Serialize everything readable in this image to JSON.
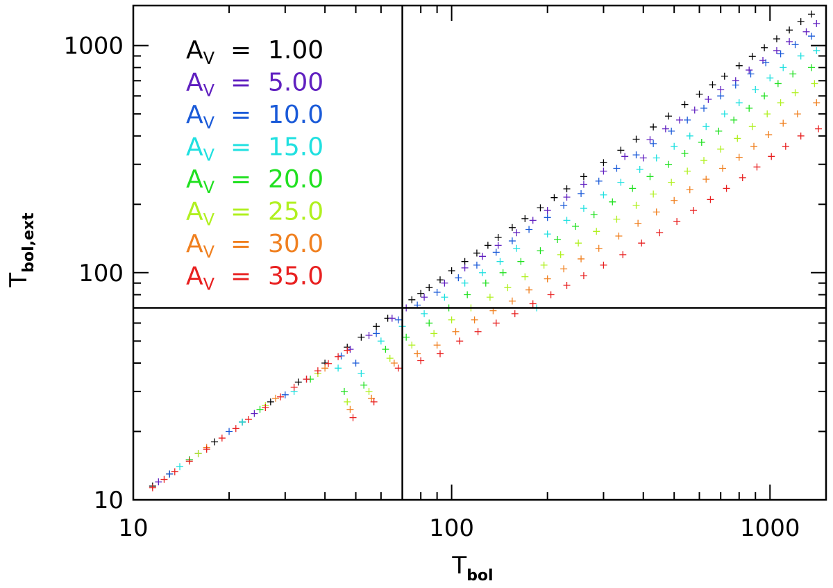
{
  "chart_data": {
    "type": "scatter",
    "marker": "plus",
    "x_scale": "log",
    "y_scale": "log",
    "xlim": [
      10,
      1500
    ],
    "ylim": [
      10,
      1500
    ],
    "x_major_ticks": [
      10,
      100,
      1000
    ],
    "y_major_ticks": [
      10,
      100,
      1000
    ],
    "x_tick_labels": [
      "10",
      "100",
      "1000"
    ],
    "y_tick_labels": [
      "10",
      "100",
      "1000"
    ],
    "xlabel": {
      "main": "T",
      "sub": "bol"
    },
    "ylabel": {
      "main": "T",
      "sub": "bol,ext"
    },
    "reference_lines": {
      "vertical_x": 70,
      "horizontal_y": 70
    },
    "legend_placement": "top-left",
    "series": [
      {
        "name": "A_V = 1.00",
        "legend_value": "1.00",
        "color": "#000000",
        "points": [
          [
            11.5,
            11.5
          ],
          [
            13,
            13
          ],
          [
            15,
            15
          ],
          [
            18,
            18
          ],
          [
            22,
            22
          ],
          [
            27,
            27
          ],
          [
            33,
            33
          ],
          [
            40,
            40
          ],
          [
            47,
            47
          ],
          [
            52,
            52
          ],
          [
            58,
            58
          ],
          [
            63,
            63
          ],
          [
            70,
            70
          ],
          [
            75,
            76
          ],
          [
            80,
            81
          ],
          [
            85,
            86
          ],
          [
            92,
            93
          ],
          [
            100,
            102
          ],
          [
            110,
            112
          ],
          [
            120,
            122
          ],
          [
            130,
            132
          ],
          [
            140,
            143
          ],
          [
            155,
            158
          ],
          [
            170,
            173
          ],
          [
            190,
            193
          ],
          [
            210,
            214
          ],
          [
            230,
            234
          ],
          [
            260,
            265
          ],
          [
            300,
            305
          ],
          [
            340,
            346
          ],
          [
            380,
            387
          ],
          [
            430,
            438
          ],
          [
            480,
            489
          ],
          [
            540,
            550
          ],
          [
            600,
            611
          ],
          [
            660,
            672
          ],
          [
            720,
            733
          ],
          [
            800,
            815
          ],
          [
            880,
            896
          ],
          [
            960,
            978
          ],
          [
            1050,
            1070
          ],
          [
            1150,
            1170
          ],
          [
            1250,
            1275
          ],
          [
            1350,
            1375
          ]
        ]
      },
      {
        "name": "A_V = 5.00",
        "legend_value": "5.00",
        "color": "#6020c0",
        "points": [
          [
            12,
            12
          ],
          [
            16,
            16
          ],
          [
            24,
            24
          ],
          [
            35,
            34
          ],
          [
            48,
            46
          ],
          [
            55,
            53
          ],
          [
            65,
            63
          ],
          [
            72,
            70
          ],
          [
            82,
            78
          ],
          [
            95,
            90
          ],
          [
            110,
            105
          ],
          [
            125,
            118
          ],
          [
            140,
            132
          ],
          [
            160,
            150
          ],
          [
            180,
            170
          ],
          [
            200,
            188
          ],
          [
            230,
            215
          ],
          [
            260,
            245
          ],
          [
            300,
            280
          ],
          [
            350,
            325
          ],
          [
            400,
            320
          ],
          [
            420,
            385
          ],
          [
            470,
            430
          ],
          [
            520,
            470
          ],
          [
            580,
            520
          ],
          [
            640,
            580
          ],
          [
            700,
            640
          ],
          [
            780,
            700
          ],
          [
            860,
            780
          ],
          [
            950,
            860
          ],
          [
            1050,
            950
          ],
          [
            1150,
            1040
          ],
          [
            1300,
            1150
          ],
          [
            1400,
            1250
          ]
        ]
      },
      {
        "name": "A_V = 10.0",
        "legend_value": "10.0",
        "color": "#1a5ad8",
        "points": [
          [
            13,
            13
          ],
          [
            20,
            20
          ],
          [
            30,
            29
          ],
          [
            45,
            43
          ],
          [
            50,
            40
          ],
          [
            58,
            54
          ],
          [
            68,
            62
          ],
          [
            78,
            72
          ],
          [
            90,
            82
          ],
          [
            105,
            95
          ],
          [
            120,
            108
          ],
          [
            138,
            123
          ],
          [
            155,
            138
          ],
          [
            175,
            155
          ],
          [
            200,
            175
          ],
          [
            225,
            198
          ],
          [
            255,
            223
          ],
          [
            290,
            253
          ],
          [
            330,
            288
          ],
          [
            380,
            330
          ],
          [
            430,
            370
          ],
          [
            490,
            420
          ],
          [
            550,
            470
          ],
          [
            620,
            530
          ],
          [
            700,
            600
          ],
          [
            780,
            670
          ],
          [
            870,
            750
          ],
          [
            970,
            840
          ],
          [
            1080,
            920
          ],
          [
            1200,
            1010
          ],
          [
            1350,
            1100
          ]
        ]
      },
      {
        "name": "A_V = 15.0",
        "legend_value": "15.0",
        "color": "#20e0e0",
        "points": [
          [
            14,
            14
          ],
          [
            22,
            22
          ],
          [
            32,
            30
          ],
          [
            44,
            38
          ],
          [
            52,
            36
          ],
          [
            60,
            50
          ],
          [
            70,
            58
          ],
          [
            82,
            66
          ],
          [
            95,
            78
          ],
          [
            110,
            90
          ],
          [
            125,
            100
          ],
          [
            142,
            112
          ],
          [
            160,
            128
          ],
          [
            185,
            70
          ],
          [
            200,
            148
          ],
          [
            230,
            170
          ],
          [
            260,
            192
          ],
          [
            300,
            220
          ],
          [
            340,
            250
          ],
          [
            390,
            285
          ],
          [
            440,
            320
          ],
          [
            500,
            360
          ],
          [
            560,
            400
          ],
          [
            630,
            440
          ],
          [
            720,
            500
          ],
          [
            800,
            560
          ],
          [
            900,
            640
          ],
          [
            1000,
            720
          ],
          [
            1100,
            800
          ],
          [
            1250,
            900
          ],
          [
            1400,
            950
          ]
        ]
      },
      {
        "name": "A_V = 20.0",
        "legend_value": "20.0",
        "color": "#20e020",
        "points": [
          [
            15,
            15
          ],
          [
            25,
            25
          ],
          [
            36,
            34
          ],
          [
            46,
            30
          ],
          [
            53,
            32
          ],
          [
            62,
            46
          ],
          [
            72,
            52
          ],
          [
            85,
            60
          ],
          [
            98,
            70
          ],
          [
            112,
            80
          ],
          [
            128,
            90
          ],
          [
            145,
            100
          ],
          [
            165,
            112
          ],
          [
            190,
            125
          ],
          [
            215,
            140
          ],
          [
            245,
            160
          ],
          [
            280,
            180
          ],
          [
            320,
            205
          ],
          [
            370,
            235
          ],
          [
            420,
            265
          ],
          [
            480,
            300
          ],
          [
            540,
            335
          ],
          [
            610,
            375
          ],
          [
            690,
            420
          ],
          [
            770,
            470
          ],
          [
            860,
            530
          ],
          [
            960,
            600
          ],
          [
            1060,
            680
          ],
          [
            1180,
            750
          ],
          [
            1350,
            800
          ]
        ]
      },
      {
        "name": "A_V = 25.0",
        "legend_value": "25.0",
        "color": "#b0f020",
        "points": [
          [
            16,
            16
          ],
          [
            26,
            26
          ],
          [
            38,
            36
          ],
          [
            47,
            27
          ],
          [
            55,
            30
          ],
          [
            64,
            42
          ],
          [
            75,
            48
          ],
          [
            88,
            54
          ],
          [
            100,
            62
          ],
          [
            115,
            70
          ],
          [
            132,
            78
          ],
          [
            150,
            86
          ],
          [
            170,
            96
          ],
          [
            195,
            108
          ],
          [
            220,
            120
          ],
          [
            250,
            135
          ],
          [
            285,
            152
          ],
          [
            330,
            172
          ],
          [
            380,
            198
          ],
          [
            430,
            222
          ],
          [
            490,
            250
          ],
          [
            550,
            280
          ],
          [
            620,
            312
          ],
          [
            700,
            350
          ],
          [
            790,
            390
          ],
          [
            880,
            440
          ],
          [
            980,
            500
          ],
          [
            1080,
            560
          ],
          [
            1200,
            620
          ],
          [
            1380,
            680
          ]
        ]
      },
      {
        "name": "A_V = 30.0",
        "legend_value": "30.0",
        "color": "#f08020",
        "points": [
          [
            17,
            17
          ],
          [
            28,
            28
          ],
          [
            40,
            38
          ],
          [
            48,
            25
          ],
          [
            56,
            28
          ],
          [
            66,
            40
          ],
          [
            78,
            44
          ],
          [
            90,
            48
          ],
          [
            103,
            55
          ],
          [
            118,
            62
          ],
          [
            135,
            68
          ],
          [
            155,
            75
          ],
          [
            175,
            84
          ],
          [
            200,
            94
          ],
          [
            225,
            104
          ],
          [
            255,
            115
          ],
          [
            290,
            128
          ],
          [
            335,
            145
          ],
          [
            385,
            165
          ],
          [
            440,
            185
          ],
          [
            500,
            208
          ],
          [
            560,
            232
          ],
          [
            630,
            258
          ],
          [
            710,
            288
          ],
          [
            800,
            322
          ],
          [
            890,
            360
          ],
          [
            990,
            405
          ],
          [
            1100,
            455
          ],
          [
            1220,
            500
          ],
          [
            1400,
            560
          ]
        ]
      },
      {
        "name": "A_V = 35.0",
        "legend_value": "35.0",
        "color": "#e82020",
        "points": [
          [
            11.5,
            11.3
          ],
          [
            12.5,
            12.3
          ],
          [
            13.5,
            13.3
          ],
          [
            15,
            14.8
          ],
          [
            17,
            16.7
          ],
          [
            19,
            18.7
          ],
          [
            21,
            20.6
          ],
          [
            23,
            22.6
          ],
          [
            26,
            25.5
          ],
          [
            29,
            28.4
          ],
          [
            32,
            31.3
          ],
          [
            35,
            34
          ],
          [
            38,
            37
          ],
          [
            41,
            39.8
          ],
          [
            44,
            42.7
          ],
          [
            47,
            45.5
          ],
          [
            49,
            23
          ],
          [
            57,
            27
          ],
          [
            68,
            38
          ],
          [
            80,
            41
          ],
          [
            92,
            44
          ],
          [
            106,
            50
          ],
          [
            121,
            55
          ],
          [
            138,
            60
          ],
          [
            158,
            66
          ],
          [
            180,
            73
          ],
          [
            205,
            80
          ],
          [
            230,
            88
          ],
          [
            260,
            97
          ],
          [
            300,
            108
          ],
          [
            345,
            120
          ],
          [
            395,
            135
          ],
          [
            450,
            150
          ],
          [
            510,
            168
          ],
          [
            575,
            188
          ],
          [
            650,
            210
          ],
          [
            730,
            235
          ],
          [
            820,
            262
          ],
          [
            910,
            292
          ],
          [
            1010,
            325
          ],
          [
            1120,
            360
          ],
          [
            1250,
            400
          ],
          [
            1420,
            430
          ]
        ]
      }
    ]
  }
}
